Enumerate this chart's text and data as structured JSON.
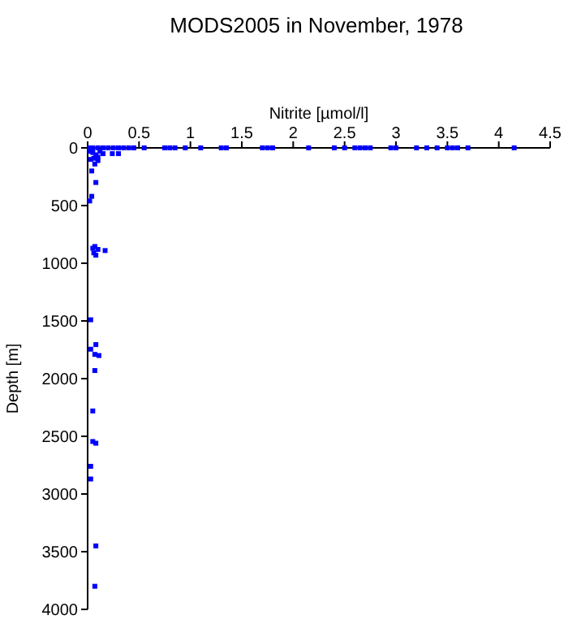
{
  "chart_data": {
    "type": "scatter",
    "title": "MODS2005 in November, 1978",
    "xlabel": "Nitrite [µmol/l]",
    "ylabel": "Depth [m]",
    "xlim": [
      0,
      4.5
    ],
    "xticks": [
      0,
      0.5,
      1,
      1.5,
      2,
      2.5,
      3,
      3.5,
      4,
      4.5
    ],
    "ylim": [
      4000,
      0
    ],
    "yticks": [
      0,
      500,
      1000,
      1500,
      2000,
      2500,
      3000,
      3500,
      4000
    ],
    "grid": false,
    "marker": "square",
    "series": [
      {
        "color": "#0000ff",
        "x": [
          0.02,
          0.05,
          0.1,
          0.15,
          0.2,
          0.25,
          0.3,
          0.35,
          0.4,
          0.45,
          0.55,
          0.75,
          0.8,
          0.85,
          0.95,
          1.1,
          1.3,
          1.35,
          1.7,
          1.75,
          1.8,
          2.15,
          2.4,
          2.5,
          2.6,
          2.65,
          2.7,
          2.75,
          2.95,
          3.0,
          3.2,
          3.3,
          3.4,
          3.5,
          3.55,
          3.6,
          3.7,
          4.15,
          0.02,
          0.05,
          0.08,
          0.1,
          0.12,
          0.15,
          0.03,
          0.06,
          0.1,
          0.24,
          0.3,
          0.07,
          0.04,
          0.08,
          0.04,
          0.02,
          0.07,
          0.05,
          0.1,
          0.17,
          0.08,
          0.06,
          0.03,
          0.08,
          0.03,
          0.07,
          0.11,
          0.07,
          0.05,
          0.05,
          0.08,
          0.03,
          0.03,
          0.08,
          0.07
        ],
        "values": [
          0,
          0,
          0,
          0,
          0,
          0,
          0,
          0,
          0,
          0,
          0,
          0,
          0,
          0,
          0,
          0,
          0,
          0,
          0,
          0,
          0,
          0,
          0,
          0,
          0,
          0,
          0,
          0,
          0,
          0,
          0,
          0,
          0,
          0,
          0,
          0,
          0,
          0,
          30,
          40,
          60,
          80,
          30,
          50,
          100,
          90,
          110,
          50,
          50,
          140,
          200,
          300,
          420,
          460,
          855,
          870,
          880,
          890,
          930,
          910,
          1490,
          1705,
          1745,
          1790,
          1800,
          1930,
          2280,
          2545,
          2560,
          2760,
          2870,
          3450,
          3800
        ]
      }
    ]
  }
}
